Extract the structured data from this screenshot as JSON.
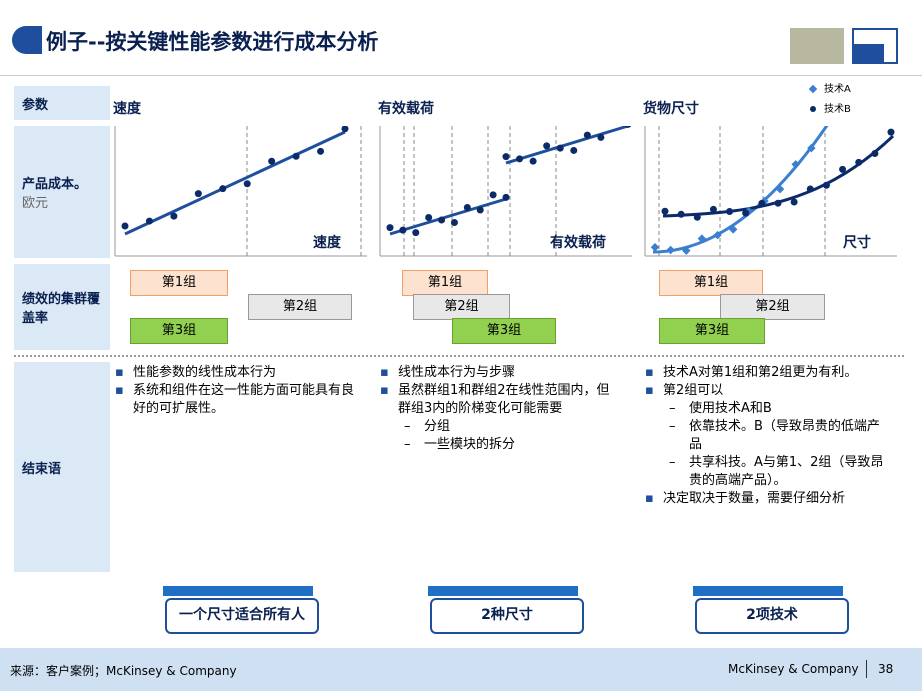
{
  "title": "例子--按关键性能参数进行成本分析",
  "row_labels": {
    "params": "参数",
    "cost": "产品成本。",
    "cost_unit": "欧元",
    "coverage": "绩效的集群覆盖率",
    "conclusion": "结束语"
  },
  "legend": [
    "技术A",
    "技术B"
  ],
  "columns": [
    {
      "header": "速度",
      "axis_label": "速度",
      "groups": [
        "第1组",
        "第2组",
        "第3组"
      ],
      "bullets": [
        {
          "text": "性能参数的线性成本行为"
        },
        {
          "text": "系统和组件在这一性能方面可能具有良好的可扩展性。"
        }
      ],
      "button": "一个尺寸适合所有人"
    },
    {
      "header": "有效载荷",
      "axis_label": "有效载荷",
      "groups": [
        "第1组",
        "第2组",
        "第3组"
      ],
      "bullets": [
        {
          "text": "线性成本行为与步骤"
        },
        {
          "text": "虽然群组1和群组2在线性范围内，但群组3内的阶梯变化可能需要",
          "sub": [
            "分组",
            "一些模块的拆分"
          ]
        }
      ],
      "button": "2种尺寸"
    },
    {
      "header": "货物尺寸",
      "axis_label": "尺寸",
      "groups": [
        "第1组",
        "第2组",
        "第3组"
      ],
      "bullets": [
        {
          "text": "技术A对第1组和第2组更为有利。"
        },
        {
          "text": "第2组可以",
          "sub": [
            "使用技术A和B",
            "依靠技术。B（导致昂贵的低端产品",
            "共享科技。A与第1、2组（导致昂贵的高端产品）。"
          ]
        },
        {
          "text": "决定取决于数量，需要仔细分析"
        }
      ],
      "button": "2项技术"
    }
  ],
  "footer": {
    "source": "来源：客户案例；McKinsey & Company",
    "company": "McKinsey & Company",
    "page": "38"
  }
}
